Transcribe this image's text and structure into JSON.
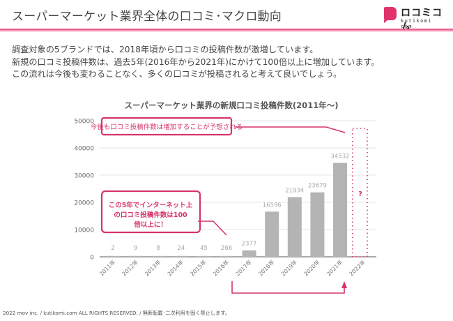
{
  "header": {
    "title": "スーパーマーケット業界全体の口コミ･マクロ動向",
    "logo_text": "ロコミコム",
    "logo_sub": "kutikomi com",
    "accent": "#e0336c"
  },
  "intro": {
    "lines": [
      "調査対象の5ブランドでは、2018年頃から口コミの投稿件数が激増しています。",
      "新規の口コミ投稿件数は、過去5年(2016年から2021年)にかけて100倍以上に増加しています。",
      "この流れは今後も変わることなく、多くの口コミが投稿されると考えて良いでしょう。"
    ]
  },
  "chart_data": {
    "type": "bar",
    "title": "スーパーマーケット業界の新規口コミ投稿件数(2011年～)",
    "xlabel": "",
    "ylabel": "",
    "categories": [
      "2011年",
      "2012年",
      "2013年",
      "2014年",
      "2015年",
      "2016年",
      "2017年",
      "2018年",
      "2019年",
      "2020年",
      "2021年",
      "2022年"
    ],
    "values": [
      2,
      9,
      8,
      24,
      45,
      266,
      2377,
      16596,
      21934,
      23679,
      34532,
      null
    ],
    "data_labels": [
      "2",
      "9",
      "8",
      "24",
      "45",
      "266",
      "2377",
      "16596",
      "21934",
      "23679",
      "34532",
      ""
    ],
    "ylim": [
      0,
      50000
    ],
    "yticks": [
      0,
      10000,
      20000,
      30000,
      40000,
      50000
    ],
    "ytick_labels": [
      "0",
      "10000",
      "20000",
      "30000",
      "40000",
      "50000"
    ],
    "grid": true,
    "bar_color": "#b4b4b4",
    "annotations": {
      "top_callout": "今後も口コミ投稿件数は増加することが予想される",
      "left_callout_lines": [
        "この5年でインターネット上",
        "の口コミ投稿件数は100",
        "倍以上に！"
      ],
      "forecast_mark": "?",
      "highlight_color": "#d6336c"
    }
  },
  "footer": {
    "text": "2022 mov inc. / kutikomi.com ALL RIGHTS RESERVED. / 無断転載･二次利用を固く禁止します。"
  }
}
